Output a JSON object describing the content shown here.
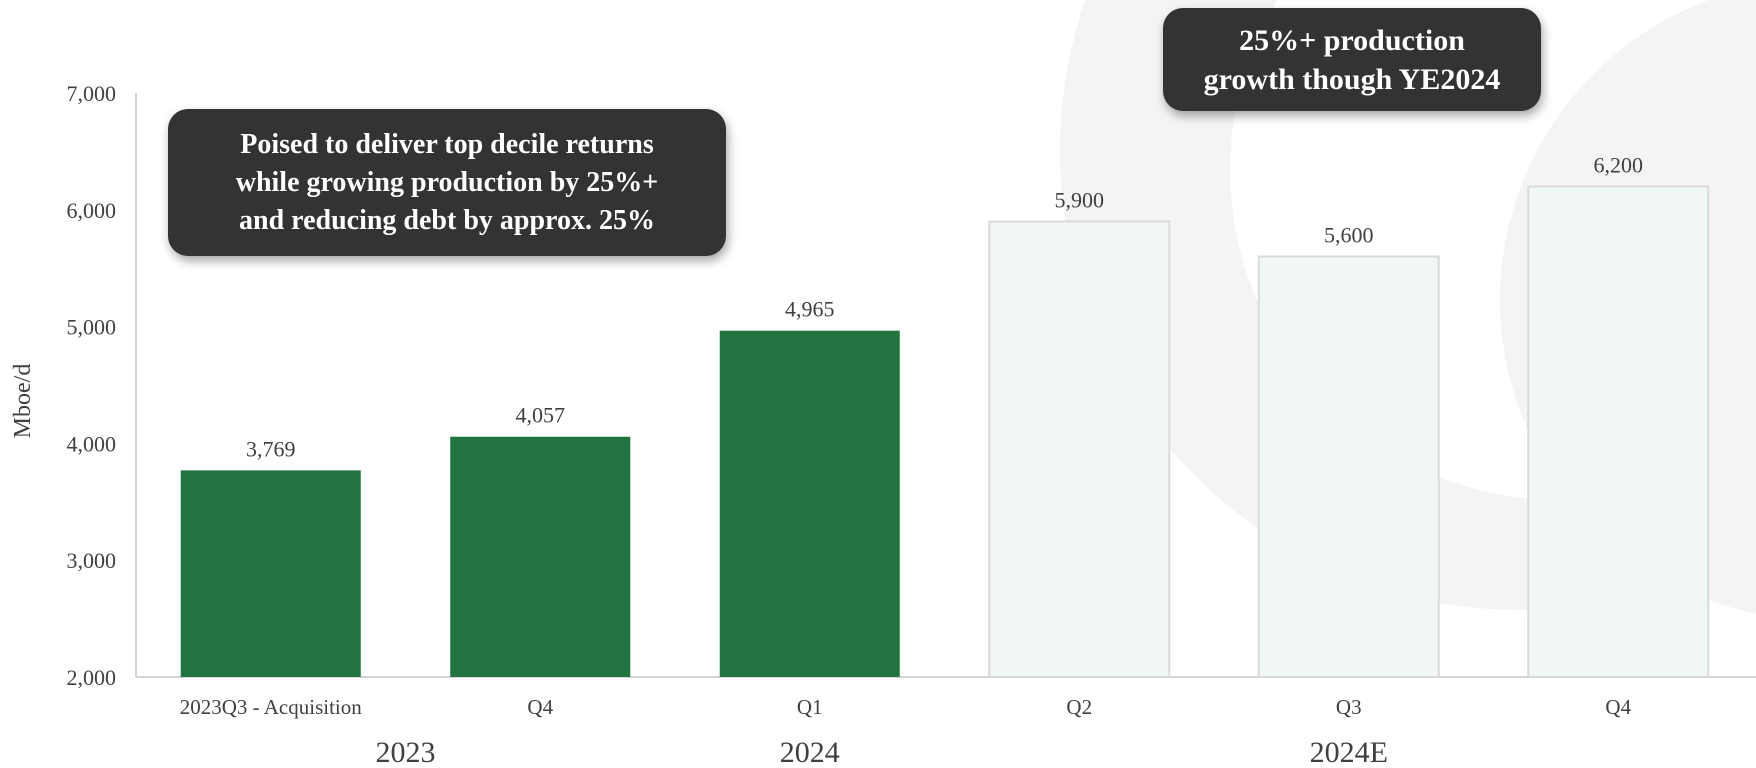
{
  "chart_data": {
    "type": "bar",
    "ylabel": "Mboe/d",
    "ylim": [
      2000,
      7000
    ],
    "yticks": [
      2000,
      3000,
      4000,
      5000,
      6000,
      7000
    ],
    "ytick_labels": [
      "2,000",
      "3,000",
      "4,000",
      "5,000",
      "6,000",
      "7,000"
    ],
    "categories": [
      "2023Q3 - Acquisition",
      "Q4",
      "Q1",
      "Q2",
      "Q3",
      "Q4"
    ],
    "values": [
      3769,
      4057,
      4965,
      5900,
      5600,
      6200
    ],
    "value_labels": [
      "3,769",
      "4,057",
      "4,965",
      "5,900",
      "5,600",
      "6,200"
    ],
    "bar_style": [
      "actual",
      "actual",
      "actual",
      "estimate",
      "estimate",
      "estimate"
    ],
    "groups": [
      {
        "label": "2023",
        "categories": [
          0,
          1
        ]
      },
      {
        "label": "2024",
        "categories": [
          2
        ]
      },
      {
        "label": "2024E",
        "categories": [
          3,
          4,
          5
        ]
      }
    ],
    "colors": {
      "actual": "#217340",
      "estimate_fill": "#f1f7f4",
      "estimate_stroke": "#dadada",
      "axis": "#d4d4d4",
      "text": "#404040"
    },
    "grid": false
  },
  "callouts": {
    "left": "Poised to deliver top decile returns\nwhile growing production by 25%+\nand reducing debt by approx. 25%",
    "right": "25%+ production\ngrowth though YE2024"
  }
}
